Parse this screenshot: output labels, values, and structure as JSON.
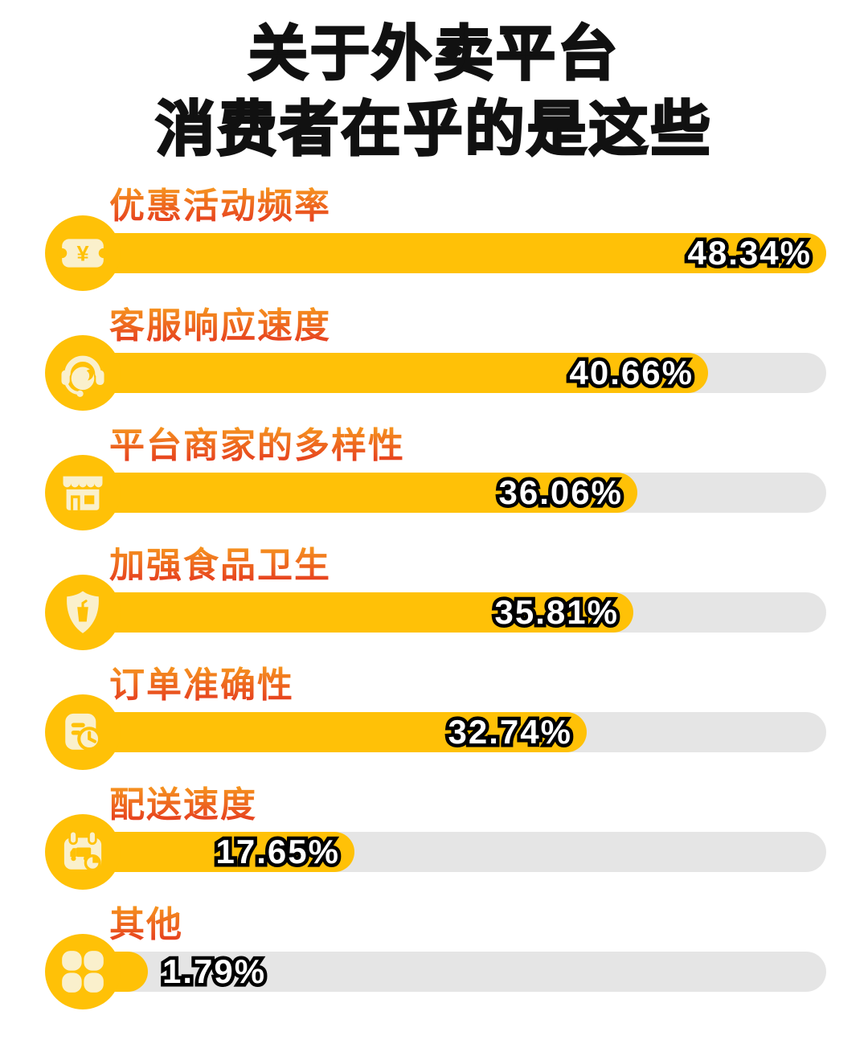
{
  "title": {
    "line1": "关于外卖平台",
    "line2": "消费者在乎的是这些"
  },
  "chart_data": {
    "type": "bar",
    "orientation": "horizontal",
    "title": "关于外卖平台 消费者在乎的是这些",
    "xlabel": "",
    "ylabel": "",
    "axis_range": [
      0,
      48.34
    ],
    "grid": false,
    "legend": "none",
    "categories": [
      "优惠活动频率",
      "客服响应速度",
      "平台商家的多样性",
      "加强食品卫生",
      "订单准确性",
      "配送速度",
      "其他"
    ],
    "values": [
      48.34,
      40.66,
      36.06,
      35.81,
      32.74,
      17.65,
      1.79
    ],
    "value_labels": [
      "48.34%",
      "40.66%",
      "36.06%",
      "35.81%",
      "32.74%",
      "17.65%",
      "1.79%"
    ],
    "icons": [
      "coupon-yen-icon",
      "headset-agent-icon",
      "storefront-icon",
      "shield-food-icon",
      "order-clock-icon",
      "delivery-calendar-icon",
      "clover-icon"
    ],
    "colors": {
      "bar_fill": "#FFC107",
      "bar_track": "#E5E5E5",
      "icon_glyph": "#FAF0CC",
      "label_gradient_top": "#F9A51F",
      "label_gradient_bottom": "#E5391F",
      "value_text": "#FFFFFF",
      "value_outline": "#000000",
      "title_color": "#111111",
      "background": "#FFFFFF"
    }
  }
}
